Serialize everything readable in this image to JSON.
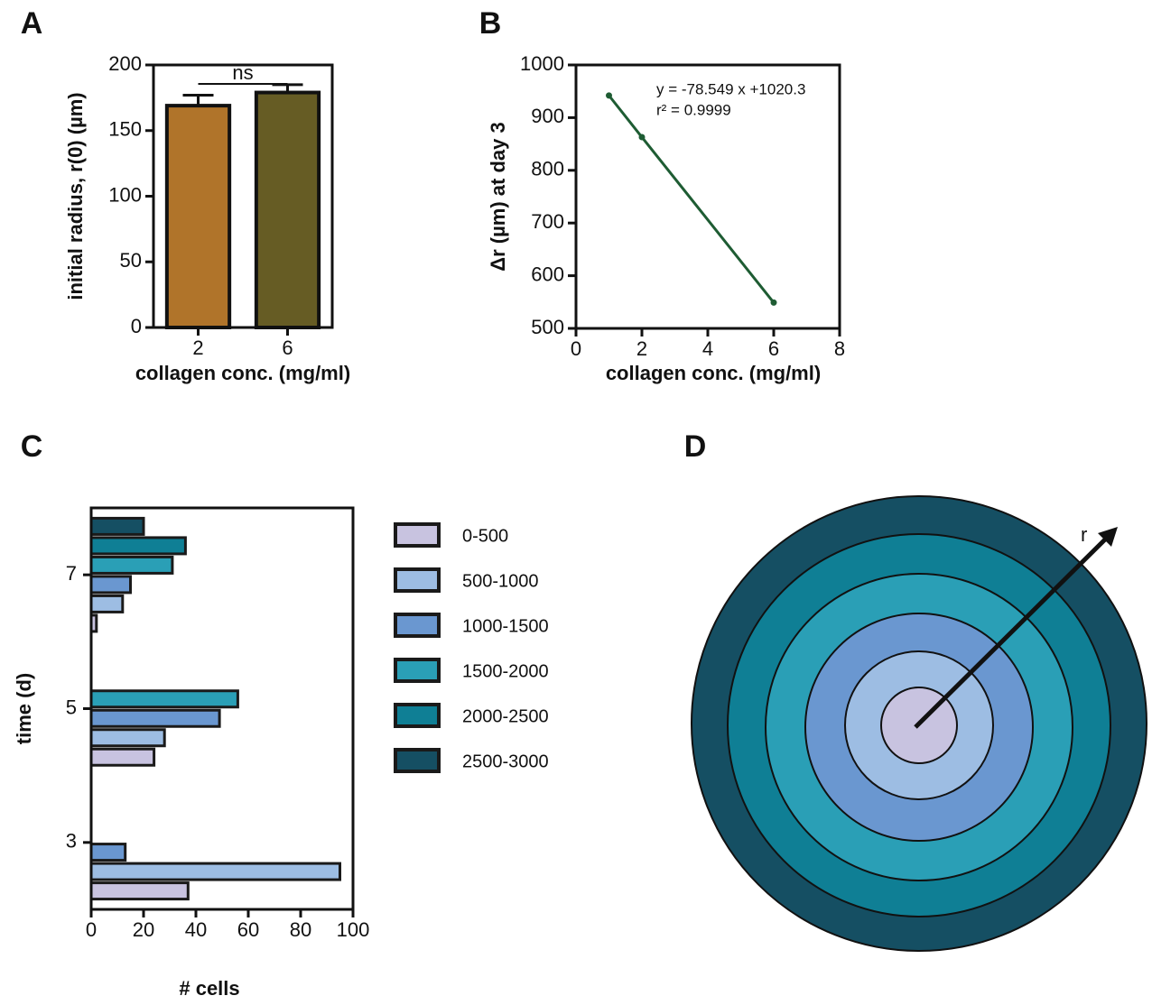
{
  "chart_data": [
    {
      "type": "bar",
      "panel_label": "A",
      "categories": [
        "2",
        "6"
      ],
      "values": [
        169,
        179
      ],
      "errors": [
        8,
        6
      ],
      "colors": [
        "#b0742a",
        "#665c24"
      ],
      "ylim": [
        0,
        200
      ],
      "yticks": [
        0,
        50,
        100,
        150,
        200
      ],
      "xlabel": "collagen conc. (mg/ml)",
      "ylabel": "initial radius, r(0) (µm)",
      "annotation": "ns"
    },
    {
      "type": "line",
      "panel_label": "B",
      "x": [
        1,
        2,
        6
      ],
      "values": [
        942,
        863,
        549
      ],
      "color": "#1e5c33",
      "xlim": [
        0,
        8
      ],
      "xticks": [
        0,
        2,
        4,
        6,
        8
      ],
      "ylim": [
        500,
        1000
      ],
      "yticks": [
        500,
        600,
        700,
        800,
        900,
        1000
      ],
      "xlabel": "collagen conc. (mg/ml)",
      "ylabel": "Δr (µm) at day 3",
      "annotations": [
        "y = -78.549 x +1020.3",
        "r² = 0.9999"
      ]
    },
    {
      "type": "hbar",
      "panel_label": "C",
      "categories": [
        "3",
        "5",
        "7"
      ],
      "series": [
        {
          "name": "0-500",
          "color": "#c8c3e0",
          "values": [
            37,
            24,
            2
          ]
        },
        {
          "name": "500-1000",
          "color": "#9dbde3",
          "values": [
            95,
            28,
            12
          ]
        },
        {
          "name": "1000-1500",
          "color": "#6a97d0",
          "values": [
            13,
            49,
            15
          ]
        },
        {
          "name": "1500-2000",
          "color": "#2a9fb6",
          "values": [
            0,
            56,
            31
          ]
        },
        {
          "name": "2000-2500",
          "color": "#0f7f95",
          "values": [
            0,
            0,
            36
          ]
        },
        {
          "name": "2500-3000",
          "color": "#154f63",
          "values": [
            0,
            0,
            20
          ]
        }
      ],
      "xlim": [
        0,
        100
      ],
      "xticks": [
        0,
        20,
        40,
        60,
        80,
        100
      ],
      "xlabel": "# cells",
      "ylabel": "time (d)"
    },
    {
      "type": "diagram",
      "panel_label": "D",
      "annotation": "r"
    }
  ]
}
